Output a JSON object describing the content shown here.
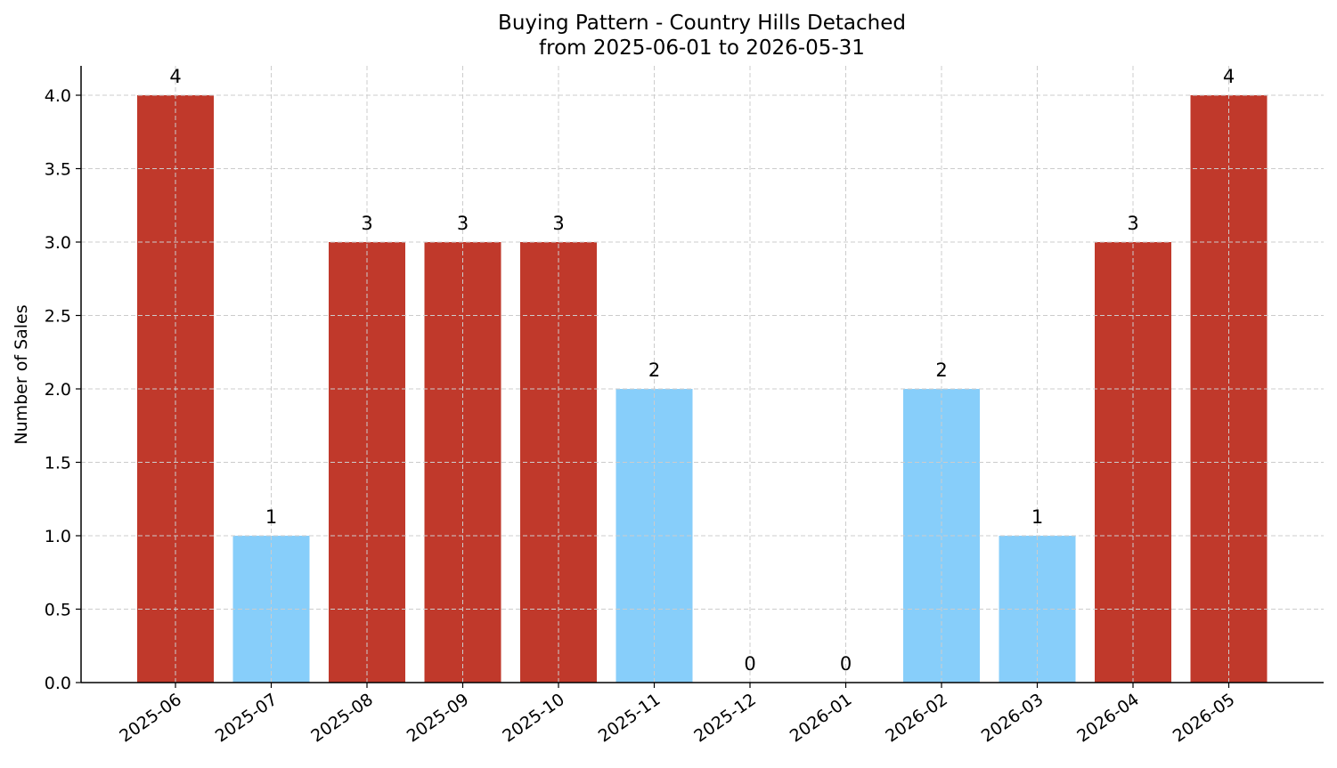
{
  "chart_data": {
    "type": "bar",
    "title": "Buying Pattern - Country Hills Detached",
    "subtitle": "from 2025-06-01 to 2026-05-31",
    "xlabel": "",
    "ylabel": "Number of Sales",
    "categories": [
      "2025-06",
      "2025-07",
      "2025-08",
      "2025-09",
      "2025-10",
      "2025-11",
      "2025-12",
      "2026-01",
      "2026-02",
      "2026-03",
      "2026-04",
      "2026-05"
    ],
    "values": [
      4,
      1,
      3,
      3,
      3,
      2,
      0,
      0,
      2,
      1,
      3,
      4
    ],
    "data_labels": [
      "4",
      "1",
      "3",
      "3",
      "3",
      "2",
      "0",
      "0",
      "2",
      "1",
      "3",
      "4"
    ],
    "bar_colors": [
      "#c0392b",
      "#87cefa",
      "#c0392b",
      "#c0392b",
      "#c0392b",
      "#87cefa",
      "#87cefa",
      "#87cefa",
      "#87cefa",
      "#87cefa",
      "#c0392b",
      "#c0392b"
    ],
    "ylim": [
      0,
      4.2
    ],
    "yticks": [
      "0.0",
      "0.5",
      "1.0",
      "1.5",
      "2.0",
      "2.5",
      "3.0",
      "3.5",
      "4.0"
    ],
    "grid": true,
    "legend": "none"
  }
}
